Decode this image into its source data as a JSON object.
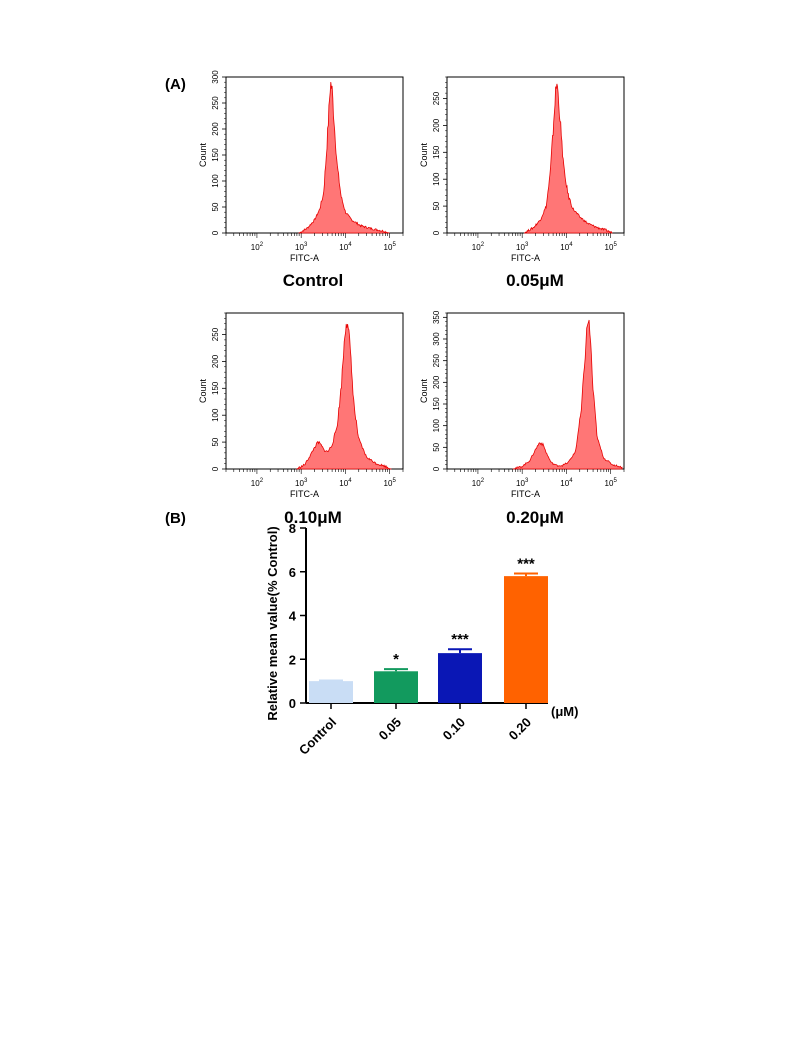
{
  "panel_labels": {
    "a": "(A)",
    "b": "(B)"
  },
  "chart_data": [
    {
      "type": "area",
      "subplot": "histogram",
      "caption": "Control",
      "xlabel": "FITC-A",
      "ylabel": "Count",
      "xscale": "log",
      "xlim": [
        20,
        200000
      ],
      "xticks": [
        100,
        1000,
        10000,
        100000
      ],
      "ylim": [
        0,
        300
      ],
      "yticks": [
        0,
        50,
        100,
        150,
        200,
        250,
        300
      ],
      "color": "#ff5a5a",
      "x": [
        900,
        1400,
        2000,
        2600,
        3200,
        3700,
        4200,
        4600,
        5000,
        5600,
        6500,
        8000,
        10000,
        14000,
        22000,
        40000,
        70000,
        100000
      ],
      "y": [
        0,
        10,
        25,
        45,
        75,
        150,
        230,
        290,
        275,
        210,
        130,
        70,
        40,
        25,
        14,
        8,
        4,
        0
      ]
    },
    {
      "type": "area",
      "subplot": "histogram",
      "caption": "0.05μM",
      "xlabel": "FITC-A",
      "ylabel": "Count",
      "xscale": "log",
      "xlim": [
        20,
        200000
      ],
      "xticks": [
        100,
        1000,
        10000,
        100000
      ],
      "ylim": [
        0,
        290
      ],
      "yticks": [
        0,
        50,
        100,
        150,
        200,
        250
      ],
      "color": "#ff5a5a",
      "x": [
        1100,
        1800,
        2600,
        3500,
        4300,
        5000,
        5600,
        6100,
        6800,
        7800,
        9000,
        11000,
        14000,
        20000,
        30000,
        50000,
        80000,
        110000
      ],
      "y": [
        0,
        10,
        25,
        50,
        110,
        190,
        255,
        280,
        240,
        170,
        110,
        70,
        45,
        30,
        18,
        10,
        5,
        0
      ]
    },
    {
      "type": "area",
      "subplot": "histogram",
      "caption": "0.10μM",
      "xlabel": "FITC-A",
      "ylabel": "Count",
      "xscale": "log",
      "xlim": [
        20,
        200000
      ],
      "xticks": [
        100,
        1000,
        10000,
        100000
      ],
      "ylim": [
        0,
        290
      ],
      "yticks": [
        0,
        50,
        100,
        150,
        200,
        250
      ],
      "color": "#ff5a5a",
      "x": [
        800,
        1200,
        1600,
        2000,
        2400,
        2800,
        3300,
        4000,
        5000,
        6500,
        8000,
        9500,
        10500,
        11500,
        13000,
        16000,
        20000,
        30000,
        50000,
        80000,
        110000
      ],
      "y": [
        0,
        8,
        25,
        40,
        50,
        45,
        35,
        32,
        45,
        80,
        150,
        240,
        280,
        275,
        210,
        110,
        55,
        22,
        10,
        5,
        0
      ]
    },
    {
      "type": "area",
      "subplot": "histogram",
      "caption": "0.20μM",
      "xlabel": "FITC-A",
      "ylabel": "Count",
      "xscale": "log",
      "xlim": [
        20,
        200000
      ],
      "xticks": [
        100,
        1000,
        10000,
        100000
      ],
      "ylim": [
        0,
        360
      ],
      "yticks": [
        0,
        50,
        100,
        150,
        200,
        250,
        300,
        350
      ],
      "color": "#ff5a5a",
      "x": [
        600,
        1000,
        1500,
        2000,
        2500,
        3000,
        3600,
        4500,
        6000,
        8000,
        11000,
        16000,
        22000,
        27000,
        31000,
        35000,
        40000,
        50000,
        70000,
        110000,
        180000
      ],
      "y": [
        0,
        6,
        20,
        45,
        62,
        55,
        35,
        15,
        8,
        8,
        15,
        40,
        140,
        280,
        350,
        300,
        180,
        70,
        25,
        10,
        4
      ]
    },
    {
      "type": "bar",
      "subplot": "summary",
      "categories": [
        "Control",
        "0.05",
        "0.10",
        "0.20"
      ],
      "values": [
        1.0,
        1.45,
        2.28,
        5.8
      ],
      "errors": [
        0.03,
        0.1,
        0.18,
        0.12
      ],
      "annotations": [
        "",
        "*",
        "***",
        "***"
      ],
      "colors": [
        "#c9ddf5",
        "#129a5e",
        "#0a17b5",
        "#ff6200"
      ],
      "ylabel": "Relative mean value(% Control)",
      "unit_label": "(μM)",
      "ylim": [
        0,
        8
      ],
      "yticks": [
        0,
        2,
        4,
        6,
        8
      ]
    }
  ]
}
